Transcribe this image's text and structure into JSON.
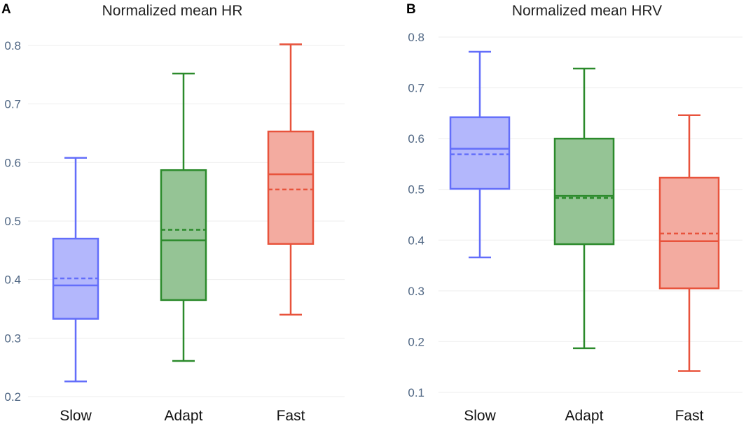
{
  "chart_data": [
    {
      "type": "box",
      "panel": "A",
      "title": "Normalized mean HR",
      "xlabel": "",
      "ylabel": "",
      "ylim": [
        0.2,
        0.82
      ],
      "yticks": [
        "0.2",
        "0.3",
        "0.4",
        "0.5",
        "0.6",
        "0.7",
        "0.8"
      ],
      "grid": true,
      "categories": [
        "Slow",
        "Adapt",
        "Fast"
      ],
      "boxes": [
        {
          "name": "Slow",
          "color": "#636efa",
          "fill": "#b3b7fc",
          "min": 0.226,
          "q1": 0.333,
          "median": 0.39,
          "mean": 0.402,
          "q3": 0.47,
          "max": 0.608
        },
        {
          "name": "Adapt",
          "color": "#2b8a2b",
          "fill": "#95c495",
          "min": 0.261,
          "q1": 0.365,
          "median": 0.467,
          "mean": 0.485,
          "q3": 0.587,
          "max": 0.752
        },
        {
          "name": "Fast",
          "color": "#e8533c",
          "fill": "#f3aba0",
          "min": 0.34,
          "q1": 0.461,
          "median": 0.58,
          "mean": 0.554,
          "q3": 0.653,
          "max": 0.802
        }
      ]
    },
    {
      "type": "box",
      "panel": "B",
      "title": "Normalized mean HRV",
      "xlabel": "",
      "ylabel": "",
      "ylim": [
        0.1,
        0.82
      ],
      "yticks": [
        "0.1",
        "0.2",
        "0.3",
        "0.4",
        "0.5",
        "0.6",
        "0.7",
        "0.8"
      ],
      "grid": true,
      "categories": [
        "Slow",
        "Adapt",
        "Fast"
      ],
      "boxes": [
        {
          "name": "Slow",
          "color": "#636efa",
          "fill": "#b3b7fc",
          "min": 0.366,
          "q1": 0.501,
          "median": 0.58,
          "mean": 0.569,
          "q3": 0.642,
          "max": 0.771
        },
        {
          "name": "Adapt",
          "color": "#2b8a2b",
          "fill": "#95c495",
          "min": 0.187,
          "q1": 0.392,
          "median": 0.487,
          "mean": 0.483,
          "q3": 0.6,
          "max": 0.738
        },
        {
          "name": "Fast",
          "color": "#e8533c",
          "fill": "#f3aba0",
          "min": 0.142,
          "q1": 0.305,
          "median": 0.398,
          "mean": 0.413,
          "q3": 0.523,
          "max": 0.646
        }
      ]
    }
  ]
}
